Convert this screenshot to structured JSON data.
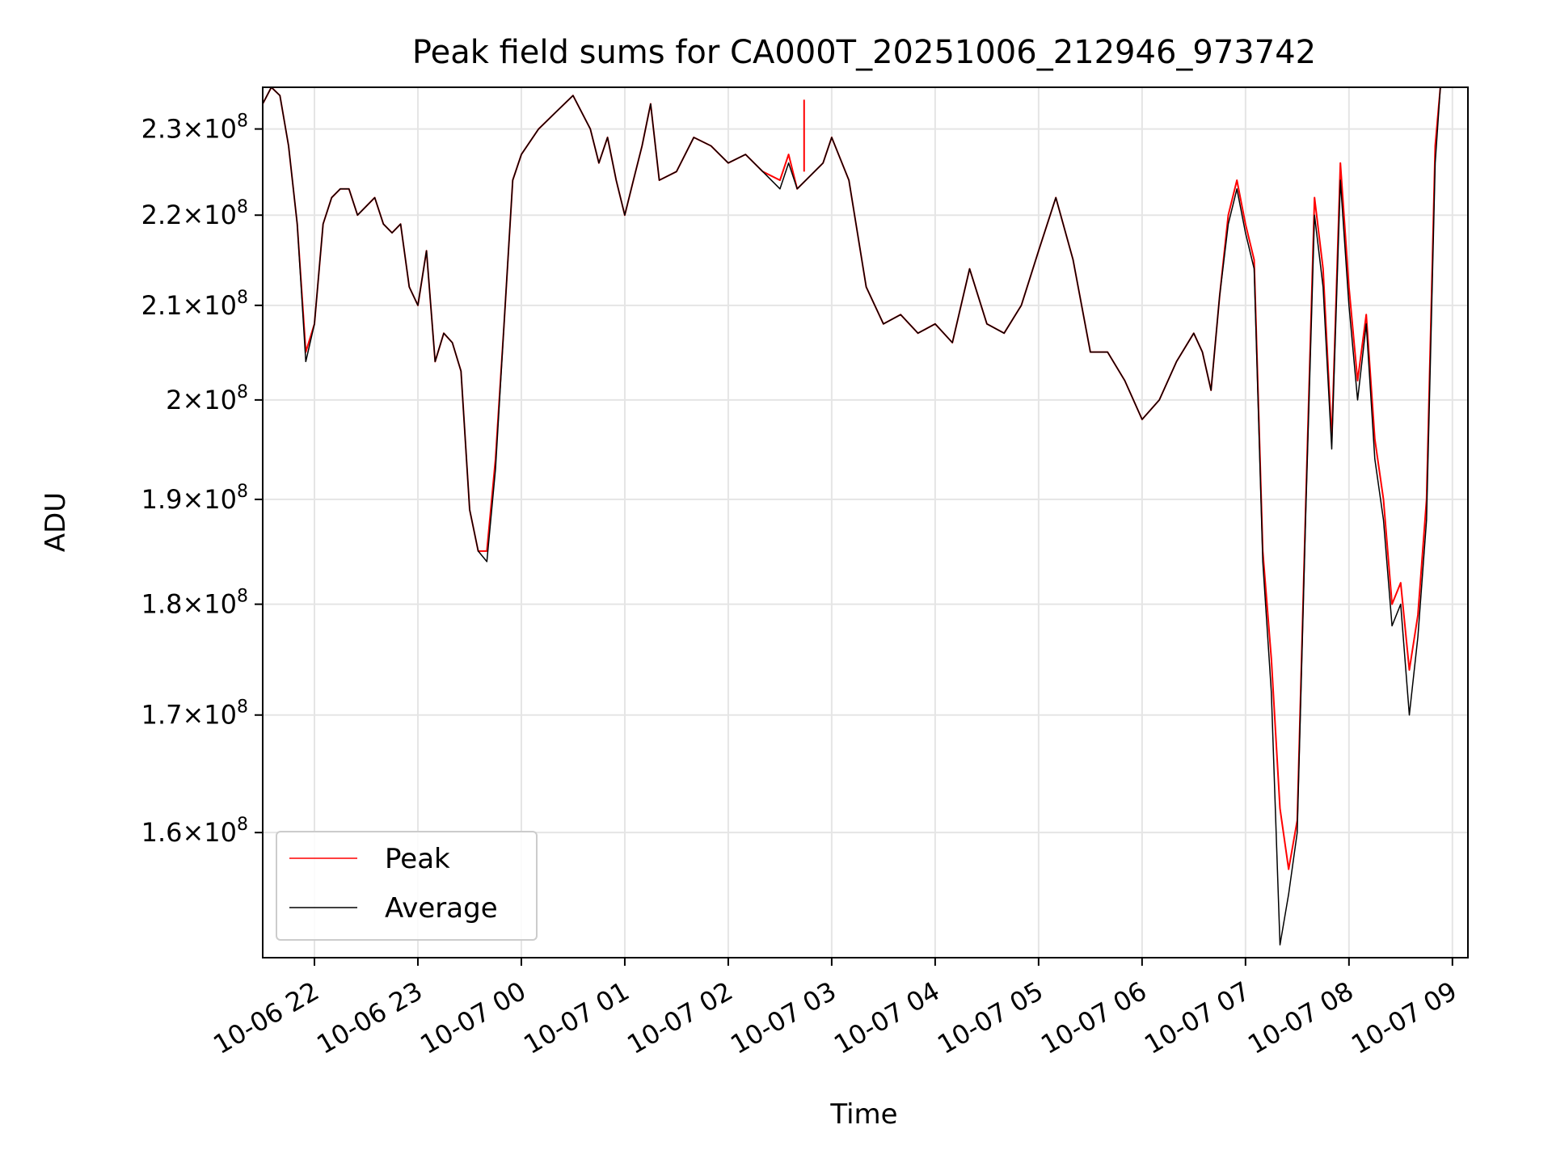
{
  "chart_data": {
    "type": "line",
    "title": "Peak field sums for CA000T_20251006_212946_973742",
    "xlabel": "Time",
    "ylabel": "ADU",
    "x_scale": "time",
    "y_scale": "log",
    "xlim": [
      "2025-10-06 21:30",
      "2025-10-07 09:09"
    ],
    "ylim": [
      150000000,
      235000000
    ],
    "grid": true,
    "legend_position": "lower-left",
    "x_ticks": [
      "10-06 22",
      "10-06 23",
      "10-07 00",
      "10-07 01",
      "10-07 02",
      "10-07 03",
      "10-07 04",
      "10-07 05",
      "10-07 06",
      "10-07 07",
      "10-07 08",
      "10-07 09"
    ],
    "y_ticks": [
      {
        "value": 160000000,
        "mantissa": "1.6",
        "base": "10",
        "exp": "8"
      },
      {
        "value": 170000000,
        "mantissa": "1.7",
        "base": "10",
        "exp": "8"
      },
      {
        "value": 180000000,
        "mantissa": "1.8",
        "base": "10",
        "exp": "8"
      },
      {
        "value": 190000000,
        "mantissa": "1.9",
        "base": "10",
        "exp": "8"
      },
      {
        "value": 200000000,
        "mantissa": "2",
        "base": "10",
        "exp": "8"
      },
      {
        "value": 210000000,
        "mantissa": "2.1",
        "base": "10",
        "exp": "8"
      },
      {
        "value": 220000000,
        "mantissa": "2.2",
        "base": "10",
        "exp": "8"
      },
      {
        "value": 230000000,
        "mantissa": "2.3",
        "base": "10",
        "exp": "8"
      }
    ],
    "series": [
      {
        "name": "Peak",
        "color": "#ff0000",
        "x": [
          "2025-10-06 21:30",
          "2025-10-06 21:35",
          "2025-10-06 21:40",
          "2025-10-06 21:45",
          "2025-10-06 21:50",
          "2025-10-06 21:55",
          "2025-10-06 22:00",
          "2025-10-06 22:05",
          "2025-10-06 22:10",
          "2025-10-06 22:15",
          "2025-10-06 22:20",
          "2025-10-06 22:25",
          "2025-10-06 22:30",
          "2025-10-06 22:35",
          "2025-10-06 22:40",
          "2025-10-06 22:45",
          "2025-10-06 22:50",
          "2025-10-06 22:55",
          "2025-10-06 23:00",
          "2025-10-06 23:05",
          "2025-10-06 23:10",
          "2025-10-06 23:15",
          "2025-10-06 23:20",
          "2025-10-06 23:25",
          "2025-10-06 23:30",
          "2025-10-06 23:35",
          "2025-10-06 23:40",
          "2025-10-06 23:45",
          "2025-10-06 23:50",
          "2025-10-06 23:55",
          "2025-10-07 00:00",
          "2025-10-07 00:10",
          "2025-10-07 00:20",
          "2025-10-07 00:30",
          "2025-10-07 00:40",
          "2025-10-07 00:45",
          "2025-10-07 00:50",
          "2025-10-07 00:55",
          "2025-10-07 01:00",
          "2025-10-07 01:05",
          "2025-10-07 01:10",
          "2025-10-07 01:15",
          "2025-10-07 01:20",
          "2025-10-07 01:30",
          "2025-10-07 01:40",
          "2025-10-07 01:50",
          "2025-10-07 02:00",
          "2025-10-07 02:10",
          "2025-10-07 02:20",
          "2025-10-07 02:30",
          "2025-10-07 02:35",
          "2025-10-07 02:40",
          "2025-10-07 02:50",
          "2025-10-07 02:55",
          "2025-10-07 03:00",
          "2025-10-07 03:10",
          "2025-10-07 03:20",
          "2025-10-07 03:30",
          "2025-10-07 03:40",
          "2025-10-07 03:50",
          "2025-10-07 04:00",
          "2025-10-07 04:10",
          "2025-10-07 04:20",
          "2025-10-07 04:30",
          "2025-10-07 04:40",
          "2025-10-07 04:50",
          "2025-10-07 05:00",
          "2025-10-07 05:10",
          "2025-10-07 05:20",
          "2025-10-07 05:30",
          "2025-10-07 05:40",
          "2025-10-07 05:50",
          "2025-10-07 06:00",
          "2025-10-07 06:10",
          "2025-10-07 06:20",
          "2025-10-07 06:30",
          "2025-10-07 06:35",
          "2025-10-07 06:40",
          "2025-10-07 06:45",
          "2025-10-07 06:50",
          "2025-10-07 06:55",
          "2025-10-07 07:00",
          "2025-10-07 07:05",
          "2025-10-07 07:10",
          "2025-10-07 07:15",
          "2025-10-07 07:20",
          "2025-10-07 07:25",
          "2025-10-07 07:30",
          "2025-10-07 07:35",
          "2025-10-07 07:40",
          "2025-10-07 07:45",
          "2025-10-07 07:50",
          "2025-10-07 07:55",
          "2025-10-07 08:00",
          "2025-10-07 08:05",
          "2025-10-07 08:10",
          "2025-10-07 08:15",
          "2025-10-07 08:20",
          "2025-10-07 08:25",
          "2025-10-07 08:30",
          "2025-10-07 08:35",
          "2025-10-07 08:40",
          "2025-10-07 08:45",
          "2025-10-07 08:50",
          "2025-10-07 08:53"
        ],
        "y": [
          233000000,
          235000000,
          234000000,
          228000000,
          219000000,
          205000000,
          208000000,
          219000000,
          222000000,
          223000000,
          223000000,
          220000000,
          221000000,
          222000000,
          219000000,
          218000000,
          219000000,
          212000000,
          210000000,
          216000000,
          204000000,
          207000000,
          206000000,
          203000000,
          189000000,
          185000000,
          185000000,
          194000000,
          208000000,
          224000000,
          227000000,
          230000000,
          232000000,
          234000000,
          230000000,
          226000000,
          229000000,
          224000000,
          220000000,
          224000000,
          228000000,
          233000000,
          224000000,
          225000000,
          229000000,
          228000000,
          226000000,
          227000000,
          225000000,
          224000000,
          227000000,
          223000000,
          225000000,
          226000000,
          229000000,
          224000000,
          212000000,
          208000000,
          209000000,
          207000000,
          208000000,
          206000000,
          214000000,
          208000000,
          207000000,
          210000000,
          216000000,
          222000000,
          215000000,
          205000000,
          205000000,
          202000000,
          198000000,
          200000000,
          204000000,
          207000000,
          205000000,
          201000000,
          211000000,
          220000000,
          224000000,
          219000000,
          215000000,
          185000000,
          175000000,
          162000000,
          157000000,
          161000000,
          190000000,
          222000000,
          214000000,
          196000000,
          226000000,
          212000000,
          202000000,
          209000000,
          196000000,
          190000000,
          180000000,
          182000000,
          174000000,
          179000000,
          190000000,
          228000000,
          235000000
        ],
        "spike": {
          "x": "2025-10-07 02:44",
          "y": 233500000
        }
      },
      {
        "name": "Average",
        "color": "#000000",
        "x": [
          "2025-10-06 21:30",
          "2025-10-06 21:35",
          "2025-10-06 21:40",
          "2025-10-06 21:45",
          "2025-10-06 21:50",
          "2025-10-06 21:55",
          "2025-10-06 22:00",
          "2025-10-06 22:05",
          "2025-10-06 22:10",
          "2025-10-06 22:15",
          "2025-10-06 22:20",
          "2025-10-06 22:25",
          "2025-10-06 22:30",
          "2025-10-06 22:35",
          "2025-10-06 22:40",
          "2025-10-06 22:45",
          "2025-10-06 22:50",
          "2025-10-06 22:55",
          "2025-10-06 23:00",
          "2025-10-06 23:05",
          "2025-10-06 23:10",
          "2025-10-06 23:15",
          "2025-10-06 23:20",
          "2025-10-06 23:25",
          "2025-10-06 23:30",
          "2025-10-06 23:35",
          "2025-10-06 23:40",
          "2025-10-06 23:45",
          "2025-10-06 23:50",
          "2025-10-06 23:55",
          "2025-10-07 00:00",
          "2025-10-07 00:10",
          "2025-10-07 00:20",
          "2025-10-07 00:30",
          "2025-10-07 00:40",
          "2025-10-07 00:45",
          "2025-10-07 00:50",
          "2025-10-07 00:55",
          "2025-10-07 01:00",
          "2025-10-07 01:05",
          "2025-10-07 01:10",
          "2025-10-07 01:15",
          "2025-10-07 01:20",
          "2025-10-07 01:30",
          "2025-10-07 01:40",
          "2025-10-07 01:50",
          "2025-10-07 02:00",
          "2025-10-07 02:10",
          "2025-10-07 02:20",
          "2025-10-07 02:30",
          "2025-10-07 02:35",
          "2025-10-07 02:40",
          "2025-10-07 02:50",
          "2025-10-07 02:55",
          "2025-10-07 03:00",
          "2025-10-07 03:10",
          "2025-10-07 03:20",
          "2025-10-07 03:30",
          "2025-10-07 03:40",
          "2025-10-07 03:50",
          "2025-10-07 04:00",
          "2025-10-07 04:10",
          "2025-10-07 04:20",
          "2025-10-07 04:30",
          "2025-10-07 04:40",
          "2025-10-07 04:50",
          "2025-10-07 05:00",
          "2025-10-07 05:10",
          "2025-10-07 05:20",
          "2025-10-07 05:30",
          "2025-10-07 05:40",
          "2025-10-07 05:50",
          "2025-10-07 06:00",
          "2025-10-07 06:10",
          "2025-10-07 06:20",
          "2025-10-07 06:30",
          "2025-10-07 06:35",
          "2025-10-07 06:40",
          "2025-10-07 06:45",
          "2025-10-07 06:50",
          "2025-10-07 06:55",
          "2025-10-07 07:00",
          "2025-10-07 07:05",
          "2025-10-07 07:10",
          "2025-10-07 07:15",
          "2025-10-07 07:20",
          "2025-10-07 07:25",
          "2025-10-07 07:30",
          "2025-10-07 07:35",
          "2025-10-07 07:40",
          "2025-10-07 07:45",
          "2025-10-07 07:50",
          "2025-10-07 07:55",
          "2025-10-07 08:00",
          "2025-10-07 08:05",
          "2025-10-07 08:10",
          "2025-10-07 08:15",
          "2025-10-07 08:20",
          "2025-10-07 08:25",
          "2025-10-07 08:30",
          "2025-10-07 08:35",
          "2025-10-07 08:40",
          "2025-10-07 08:45",
          "2025-10-07 08:50",
          "2025-10-07 08:53"
        ],
        "y": [
          233000000,
          235000000,
          234000000,
          228000000,
          219000000,
          204000000,
          208000000,
          219000000,
          222000000,
          223000000,
          223000000,
          220000000,
          221000000,
          222000000,
          219000000,
          218000000,
          219000000,
          212000000,
          210000000,
          216000000,
          204000000,
          207000000,
          206000000,
          203000000,
          189000000,
          185000000,
          184000000,
          193000000,
          208000000,
          224000000,
          227000000,
          230000000,
          232000000,
          234000000,
          230000000,
          226000000,
          229000000,
          224000000,
          220000000,
          224000000,
          228000000,
          233000000,
          224000000,
          225000000,
          229000000,
          228000000,
          226000000,
          227000000,
          225000000,
          223000000,
          226000000,
          223000000,
          225000000,
          226000000,
          229000000,
          224000000,
          212000000,
          208000000,
          209000000,
          207000000,
          208000000,
          206000000,
          214000000,
          208000000,
          207000000,
          210000000,
          216000000,
          222000000,
          215000000,
          205000000,
          205000000,
          202000000,
          198000000,
          200000000,
          204000000,
          207000000,
          205000000,
          201000000,
          211000000,
          219000000,
          223000000,
          218000000,
          214000000,
          184000000,
          172000000,
          151000000,
          155000000,
          160000000,
          189000000,
          220000000,
          212000000,
          195000000,
          224000000,
          210000000,
          200000000,
          208000000,
          194000000,
          188000000,
          178000000,
          180000000,
          170000000,
          177000000,
          188000000,
          226000000,
          235000000
        ]
      }
    ]
  }
}
